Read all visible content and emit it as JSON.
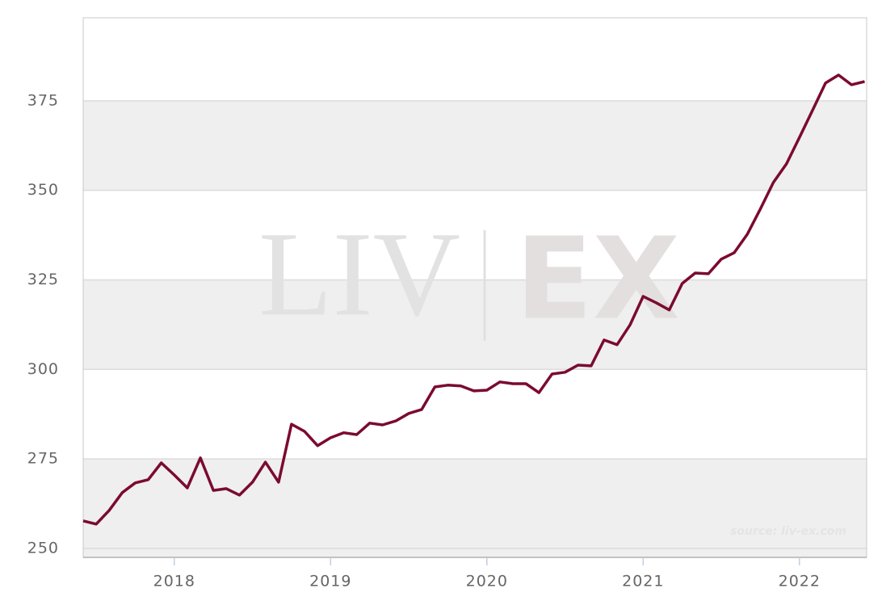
{
  "chart_data": {
    "type": "line",
    "watermark_left": "LIV",
    "watermark_right": "EX",
    "source": "source: liv-ex.com",
    "x": [
      2017.417,
      2017.5,
      2017.583,
      2017.667,
      2017.75,
      2017.833,
      2017.917,
      2018,
      2018.083,
      2018.167,
      2018.25,
      2018.333,
      2018.417,
      2018.5,
      2018.583,
      2018.667,
      2018.75,
      2018.833,
      2018.917,
      2019,
      2019.083,
      2019.167,
      2019.25,
      2019.333,
      2019.417,
      2019.5,
      2019.583,
      2019.667,
      2019.75,
      2019.833,
      2019.917,
      2020,
      2020.083,
      2020.167,
      2020.25,
      2020.333,
      2020.417,
      2020.5,
      2020.583,
      2020.667,
      2020.75,
      2020.833,
      2020.917,
      2021,
      2021.083,
      2021.167,
      2021.25,
      2021.333,
      2021.417,
      2021.5,
      2021.583,
      2021.667,
      2021.75,
      2021.833,
      2021.917,
      2022,
      2022.083,
      2022.167,
      2022.25,
      2022.333,
      2022.417
    ],
    "values": [
      257.7,
      256.8,
      260.6,
      265.6,
      268.3,
      269.2,
      273.9,
      270.5,
      266.9,
      275.3,
      266.2,
      266.7,
      264.9,
      268.5,
      274.1,
      268.5,
      284.7,
      282.7,
      278.7,
      280.9,
      282.3,
      281.8,
      285.0,
      284.5,
      285.6,
      287.7,
      288.8,
      295.1,
      295.6,
      295.4,
      294.0,
      294.2,
      296.5,
      296.0,
      296.0,
      293.5,
      298.7,
      299.2,
      301.2,
      301.0,
      308.2,
      306.9,
      312.5,
      320.4,
      318.6,
      316.6,
      324.0,
      326.9,
      326.7,
      330.8,
      332.6,
      337.8,
      344.8,
      352.2,
      357.4,
      364.8,
      372.3,
      380.0,
      382.2,
      379.5,
      380.4
    ],
    "color": "#7b0a32",
    "xlim": [
      2017.417,
      2022.43
    ],
    "xticks": [
      2018,
      2019,
      2020,
      2021,
      2022
    ],
    "ylim": [
      247.5,
      398.2
    ],
    "yticks": [
      250,
      275,
      300,
      325,
      350,
      375
    ],
    "grid": true,
    "band_color": "#efefef"
  }
}
